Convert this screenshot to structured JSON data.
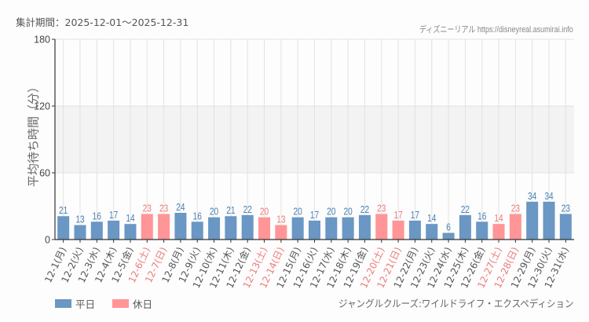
{
  "header": {
    "period_label": "集計期間：2025-12-01～2025-12-31",
    "credit": "ディズニーリアル https://disneyreal.asumirai.info"
  },
  "legend": {
    "weekday_label": "平日",
    "holiday_label": "休日"
  },
  "footer": {
    "attraction_name": "ジャングルクルーズ:ワイルドライフ・エクスペディション"
  },
  "colors": {
    "weekday": "#6a97c4",
    "holiday": "#ff9597",
    "weekday_text": "#4a7fb5",
    "holiday_text": "#f07a7c",
    "band": "#f3f3f3",
    "grid": "#e2e2e2"
  },
  "chart_data": {
    "type": "bar",
    "title": "",
    "xlabel": "",
    "ylabel": "平均待ち時間（分）",
    "ylim": [
      0,
      180
    ],
    "yticks": [
      0,
      60,
      120,
      180
    ],
    "highlight_band": [
      60,
      120
    ],
    "grid": true,
    "legend_position": "bottom-left",
    "categories": [
      "12-1(月)",
      "12-2(火)",
      "12-3(水)",
      "12-4(木)",
      "12-5(金)",
      "12-6(土)",
      "12-7(日)",
      "12-8(月)",
      "12-9(火)",
      "12-10(水)",
      "12-11(木)",
      "12-12(金)",
      "12-13(土)",
      "12-14(日)",
      "12-15(月)",
      "12-16(火)",
      "12-17(水)",
      "12-18(木)",
      "12-19(金)",
      "12-20(土)",
      "12-21(日)",
      "12-22(月)",
      "12-23(火)",
      "12-24(水)",
      "12-25(木)",
      "12-26(金)",
      "12-27(土)",
      "12-28(日)",
      "12-29(月)",
      "12-30(火)",
      "12-31(水)"
    ],
    "values": [
      21,
      13,
      16,
      17,
      14,
      23,
      23,
      24,
      16,
      20,
      21,
      22,
      20,
      13,
      20,
      17,
      20,
      20,
      22,
      23,
      17,
      17,
      14,
      6,
      22,
      16,
      14,
      23,
      34,
      34,
      23
    ],
    "day_type": [
      "平日",
      "平日",
      "平日",
      "平日",
      "平日",
      "休日",
      "休日",
      "平日",
      "平日",
      "平日",
      "平日",
      "平日",
      "休日",
      "休日",
      "平日",
      "平日",
      "平日",
      "平日",
      "平日",
      "休日",
      "休日",
      "平日",
      "平日",
      "平日",
      "平日",
      "平日",
      "休日",
      "休日",
      "平日",
      "平日",
      "平日"
    ],
    "series": [
      {
        "name": "平日",
        "color": "#6a97c4"
      },
      {
        "name": "休日",
        "color": "#ff9597"
      }
    ]
  }
}
